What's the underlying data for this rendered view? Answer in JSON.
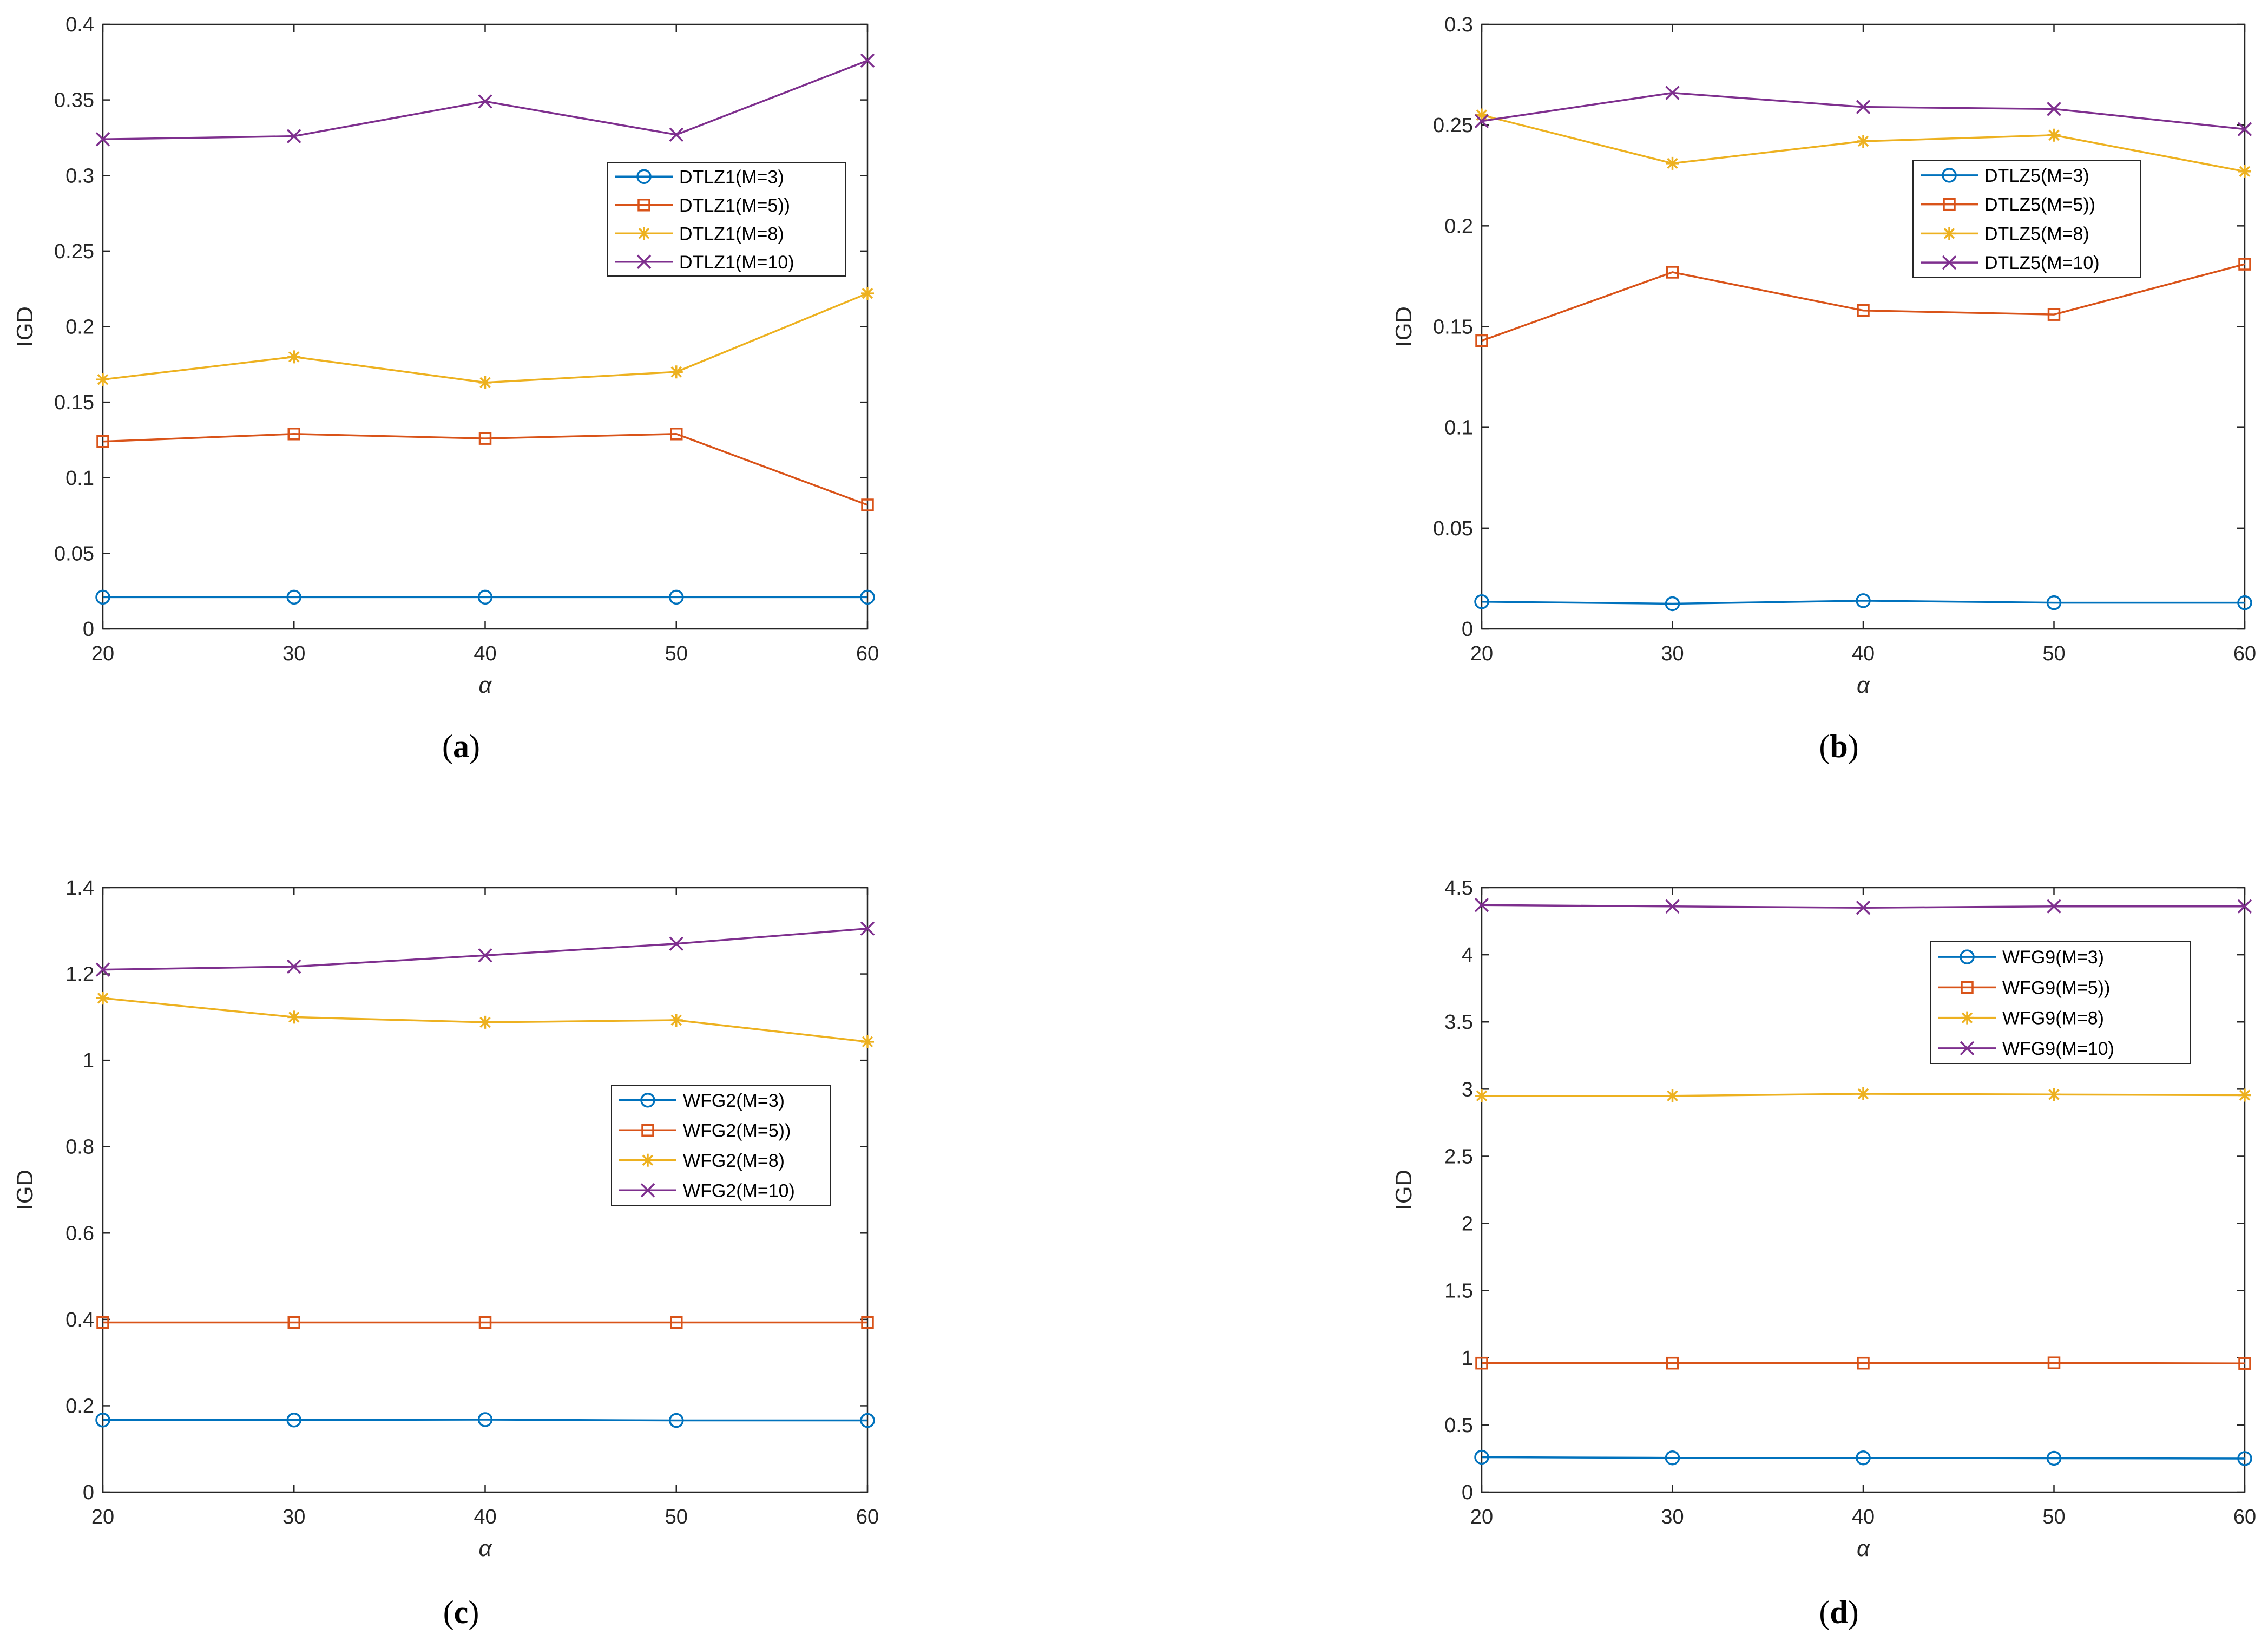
{
  "chart_data": [
    {
      "type": "line",
      "id": "a",
      "caption_label": "a",
      "xlabel": "α",
      "ylabel": "IGD",
      "x": [
        20,
        30,
        40,
        50,
        60
      ],
      "xlim": [
        20,
        60
      ],
      "ylim": [
        0,
        0.4
      ],
      "xticks": [
        20,
        30,
        40,
        50,
        60
      ],
      "yticks": [
        0,
        0.05,
        0.1,
        0.15,
        0.2,
        0.25,
        0.3,
        0.35,
        0.4
      ],
      "ytick_labels": [
        "0",
        "0.05",
        "0.1",
        "0.15",
        "0.2",
        "0.25",
        "0.3",
        "0.35",
        "0.4"
      ],
      "legend_position": "upper-right",
      "series": [
        {
          "name": "DTLZ1(M=3)",
          "color": "#0072BD",
          "marker": "circle",
          "values": [
            0.021,
            0.021,
            0.021,
            0.021,
            0.021
          ]
        },
        {
          "name": "DTLZ1(M=5))",
          "color": "#D95319",
          "marker": "square",
          "values": [
            0.124,
            0.129,
            0.126,
            0.129,
            0.082
          ]
        },
        {
          "name": "DTLZ1(M=8)",
          "color": "#EDB120",
          "marker": "asterisk",
          "values": [
            0.165,
            0.18,
            0.163,
            0.17,
            0.222
          ]
        },
        {
          "name": "DTLZ1(M=10)",
          "color": "#7E2F8E",
          "marker": "cross",
          "values": [
            0.324,
            0.326,
            0.349,
            0.327,
            0.376
          ]
        }
      ]
    },
    {
      "type": "line",
      "id": "b",
      "caption_label": "b",
      "xlabel": "α",
      "ylabel": "IGD",
      "x": [
        20,
        30,
        40,
        50,
        60
      ],
      "xlim": [
        20,
        60
      ],
      "ylim": [
        0,
        0.3
      ],
      "xticks": [
        20,
        30,
        40,
        50,
        60
      ],
      "yticks": [
        0,
        0.05,
        0.1,
        0.15,
        0.2,
        0.25,
        0.3
      ],
      "ytick_labels": [
        "0",
        "0.05",
        "0.1",
        "0.15",
        "0.2",
        "0.25",
        "0.3"
      ],
      "legend_position": "upper-right",
      "series": [
        {
          "name": "DTLZ5(M=3)",
          "color": "#0072BD",
          "marker": "circle",
          "values": [
            0.0135,
            0.0125,
            0.014,
            0.013,
            0.013
          ]
        },
        {
          "name": "DTLZ5(M=5))",
          "color": "#D95319",
          "marker": "square",
          "values": [
            0.143,
            0.177,
            0.158,
            0.156,
            0.181
          ]
        },
        {
          "name": "DTLZ5(M=8)",
          "color": "#EDB120",
          "marker": "asterisk",
          "values": [
            0.255,
            0.231,
            0.242,
            0.245,
            0.227
          ]
        },
        {
          "name": "DTLZ5(M=10)",
          "color": "#7E2F8E",
          "marker": "cross",
          "values": [
            0.252,
            0.266,
            0.259,
            0.258,
            0.248
          ]
        }
      ]
    },
    {
      "type": "line",
      "id": "c",
      "caption_label": "c",
      "xlabel": "α",
      "ylabel": "IGD",
      "x": [
        20,
        30,
        40,
        50,
        60
      ],
      "xlim": [
        20,
        60
      ],
      "ylim": [
        0,
        1.4
      ],
      "xticks": [
        20,
        30,
        40,
        50,
        60
      ],
      "yticks": [
        0,
        0.2,
        0.4,
        0.6,
        0.8,
        1,
        1.2,
        1.4
      ],
      "ytick_labels": [
        "0",
        "0.2",
        "0.4",
        "0.6",
        "0.8",
        "1",
        "1.2",
        "1.4"
      ],
      "legend_position": "center-right",
      "series": [
        {
          "name": "WFG2(M=3)",
          "color": "#0072BD",
          "marker": "circle",
          "values": [
            0.167,
            0.167,
            0.168,
            0.166,
            0.166
          ]
        },
        {
          "name": "WFG2(M=5))",
          "color": "#D95319",
          "marker": "square",
          "values": [
            0.393,
            0.393,
            0.393,
            0.393,
            0.393
          ]
        },
        {
          "name": "WFG2(M=8)",
          "color": "#EDB120",
          "marker": "asterisk",
          "values": [
            1.144,
            1.1,
            1.088,
            1.093,
            1.043
          ]
        },
        {
          "name": "WFG2(M=10)",
          "color": "#7E2F8E",
          "marker": "cross",
          "values": [
            1.21,
            1.217,
            1.243,
            1.27,
            1.305
          ]
        }
      ]
    },
    {
      "type": "line",
      "id": "d",
      "caption_label": "d",
      "xlabel": "α",
      "ylabel": "IGD",
      "x": [
        20,
        30,
        40,
        50,
        60
      ],
      "xlim": [
        20,
        60
      ],
      "ylim": [
        0,
        4.5
      ],
      "xticks": [
        20,
        30,
        40,
        50,
        60
      ],
      "yticks": [
        0,
        0.5,
        1,
        1.5,
        2,
        2.5,
        3,
        3.5,
        4,
        4.5
      ],
      "ytick_labels": [
        "0",
        "0.5",
        "1",
        "1.5",
        "2",
        "2.5",
        "3",
        "3.5",
        "4",
        "4.5"
      ],
      "legend_position": "upper-right",
      "series": [
        {
          "name": "WFG9(M=3)",
          "color": "#0072BD",
          "marker": "circle",
          "values": [
            0.26,
            0.255,
            0.255,
            0.252,
            0.25
          ]
        },
        {
          "name": "WFG9(M=5))",
          "color": "#D95319",
          "marker": "square",
          "values": [
            0.96,
            0.96,
            0.96,
            0.962,
            0.958
          ]
        },
        {
          "name": "WFG9(M=8)",
          "color": "#EDB120",
          "marker": "asterisk",
          "values": [
            2.95,
            2.95,
            2.965,
            2.96,
            2.955
          ]
        },
        {
          "name": "WFG9(M=10)",
          "color": "#7E2F8E",
          "marker": "cross",
          "values": [
            4.37,
            4.36,
            4.35,
            4.36,
            4.36
          ]
        }
      ]
    }
  ]
}
